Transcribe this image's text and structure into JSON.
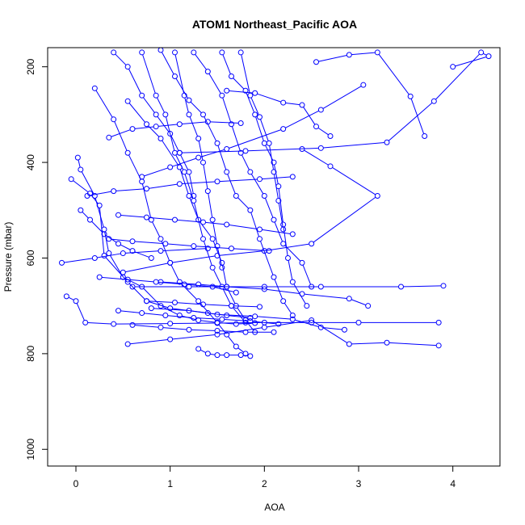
{
  "chart_data": {
    "type": "scatter",
    "title": "ATOM1 Northeast_Pacific AOA",
    "xlabel": "AOA",
    "ylabel": "Pressure (mbar)",
    "xlim": [
      -0.3,
      4.5
    ],
    "ylim": [
      1035,
      160
    ],
    "y_inverted": true,
    "xticks": [
      0,
      1,
      2,
      3,
      4
    ],
    "yticks": [
      200,
      400,
      600,
      800,
      1000
    ],
    "grid": false,
    "legend": "none",
    "colors": {
      "series": "#0000ff",
      "axes": "#000000"
    },
    "series": [
      {
        "points": [
          [
            0.02,
            390
          ],
          [
            0.05,
            415
          ],
          [
            0.2,
            470
          ],
          [
            0.3,
            540
          ],
          [
            0.35,
            590
          ],
          [
            0.5,
            640
          ],
          [
            0.7,
            660
          ],
          [
            0.9,
            700
          ],
          [
            1.1,
            720
          ],
          [
            1.3,
            730
          ],
          [
            1.5,
            735
          ],
          [
            1.7,
            738
          ],
          [
            1.9,
            736
          ]
        ]
      },
      {
        "points": [
          [
            -0.05,
            435
          ],
          [
            0.15,
            465
          ],
          [
            0.25,
            490
          ],
          [
            0.3,
            595
          ],
          [
            0.55,
            650
          ],
          [
            0.75,
            690
          ],
          [
            1.0,
            705
          ],
          [
            1.4,
            715
          ],
          [
            1.6,
            720
          ],
          [
            1.85,
            725
          ]
        ]
      },
      {
        "points": [
          [
            0.2,
            245
          ],
          [
            0.4,
            310
          ],
          [
            0.55,
            380
          ],
          [
            0.7,
            440
          ],
          [
            0.8,
            520
          ],
          [
            0.9,
            560
          ],
          [
            1.0,
            610
          ],
          [
            1.1,
            650
          ],
          [
            1.3,
            690
          ],
          [
            1.5,
            735
          ],
          [
            1.6,
            760
          ],
          [
            1.7,
            785
          ],
          [
            1.8,
            800
          ]
        ]
      },
      {
        "points": [
          [
            0.55,
            272
          ],
          [
            0.75,
            320
          ],
          [
            0.9,
            350
          ],
          [
            1.1,
            410
          ],
          [
            1.2,
            470
          ],
          [
            1.3,
            520
          ],
          [
            1.45,
            560
          ],
          [
            1.55,
            610
          ],
          [
            1.6,
            660
          ],
          [
            1.7,
            700
          ],
          [
            1.8,
            730
          ],
          [
            1.9,
            755
          ]
        ]
      },
      {
        "points": [
          [
            0.7,
            170
          ],
          [
            0.85,
            260
          ],
          [
            0.95,
            300
          ],
          [
            1.05,
            380
          ],
          [
            1.15,
            420
          ],
          [
            1.25,
            480
          ],
          [
            1.35,
            560
          ],
          [
            1.45,
            620
          ],
          [
            1.55,
            660
          ],
          [
            1.65,
            700
          ],
          [
            1.8,
            735
          ]
        ]
      },
      {
        "points": [
          [
            0.9,
            165
          ],
          [
            1.05,
            220
          ],
          [
            1.2,
            270
          ],
          [
            1.35,
            300
          ],
          [
            1.5,
            360
          ],
          [
            1.6,
            420
          ],
          [
            1.7,
            470
          ],
          [
            1.85,
            500
          ],
          [
            1.95,
            560
          ],
          [
            2.1,
            640
          ],
          [
            2.2,
            690
          ],
          [
            2.3,
            720
          ]
        ]
      },
      {
        "points": [
          [
            1.25,
            170
          ],
          [
            1.4,
            210
          ],
          [
            1.55,
            260
          ],
          [
            1.65,
            320
          ],
          [
            1.75,
            380
          ],
          [
            1.85,
            420
          ],
          [
            2.0,
            470
          ],
          [
            2.1,
            520
          ],
          [
            2.2,
            570
          ],
          [
            2.4,
            610
          ],
          [
            2.5,
            660
          ]
        ]
      },
      {
        "points": [
          [
            1.55,
            170
          ],
          [
            1.65,
            220
          ],
          [
            1.8,
            250
          ],
          [
            1.9,
            300
          ],
          [
            2.0,
            360
          ],
          [
            2.1,
            400
          ],
          [
            2.15,
            450
          ],
          [
            2.2,
            530
          ],
          [
            2.25,
            600
          ],
          [
            2.3,
            650
          ],
          [
            2.45,
            700
          ]
        ]
      },
      {
        "points": [
          [
            0.5,
            630
          ],
          [
            1.0,
            610
          ],
          [
            1.5,
            595
          ],
          [
            2.0,
            585
          ],
          [
            2.5,
            570
          ],
          [
            3.2,
            470
          ],
          [
            2.7,
            408
          ],
          [
            2.4,
            372
          ]
        ]
      },
      {
        "points": [
          [
            2.55,
            190
          ],
          [
            2.9,
            175
          ],
          [
            3.2,
            170
          ],
          [
            3.55,
            262
          ],
          [
            3.7,
            345
          ]
        ]
      },
      {
        "points": [
          [
            3.05,
            238
          ],
          [
            2.6,
            290
          ],
          [
            2.2,
            330
          ],
          [
            1.6,
            372
          ],
          [
            1.3,
            390
          ],
          [
            1.0,
            410
          ],
          [
            0.7,
            430
          ]
        ]
      },
      {
        "points": [
          [
            1.1,
            380
          ],
          [
            1.8,
            376
          ],
          [
            2.6,
            370
          ],
          [
            3.3,
            358
          ],
          [
            3.8,
            272
          ],
          [
            4.3,
            170
          ],
          [
            4.38,
            178
          ],
          [
            4.0,
            200
          ]
        ]
      },
      {
        "points": [
          [
            -0.15,
            610
          ],
          [
            0.2,
            600
          ],
          [
            0.5,
            590
          ],
          [
            0.9,
            585
          ],
          [
            1.4,
            580
          ]
        ]
      },
      {
        "points": [
          [
            -0.1,
            680
          ],
          [
            0.0,
            690
          ],
          [
            0.1,
            735
          ],
          [
            0.4,
            738
          ],
          [
            1.0,
            737
          ],
          [
            1.5,
            736
          ],
          [
            2.0,
            735
          ],
          [
            2.5,
            735
          ],
          [
            3.0,
            735
          ],
          [
            3.85,
            735
          ]
        ]
      },
      {
        "points": [
          [
            0.55,
            780
          ],
          [
            1.0,
            770
          ],
          [
            1.5,
            760
          ],
          [
            2.0,
            745
          ],
          [
            2.5,
            730
          ],
          [
            2.9,
            780
          ],
          [
            3.3,
            777
          ],
          [
            3.85,
            783
          ]
        ]
      },
      {
        "points": [
          [
            0.6,
            660
          ],
          [
            1.2,
            660
          ],
          [
            2.0,
            660
          ],
          [
            2.6,
            660
          ],
          [
            3.45,
            660
          ],
          [
            3.9,
            658
          ]
        ]
      },
      {
        "points": [
          [
            0.9,
            650
          ],
          [
            1.3,
            655
          ],
          [
            1.6,
            660
          ],
          [
            2.0,
            665
          ],
          [
            2.4,
            675
          ],
          [
            2.9,
            685
          ],
          [
            3.1,
            700
          ]
        ]
      },
      {
        "points": [
          [
            0.8,
            705
          ],
          [
            1.2,
            710
          ],
          [
            1.5,
            718
          ],
          [
            1.9,
            722
          ],
          [
            2.3,
            728
          ],
          [
            2.6,
            745
          ],
          [
            2.85,
            750
          ]
        ]
      },
      {
        "points": [
          [
            1.3,
            790
          ],
          [
            1.4,
            800
          ],
          [
            1.5,
            803
          ],
          [
            1.6,
            803
          ],
          [
            1.75,
            803
          ],
          [
            1.85,
            805
          ]
        ]
      },
      {
        "points": [
          [
            0.35,
            348
          ],
          [
            0.6,
            330
          ],
          [
            0.85,
            325
          ],
          [
            1.1,
            320
          ],
          [
            1.4,
            315
          ],
          [
            1.75,
            318
          ]
        ]
      },
      {
        "points": [
          [
            0.12,
            470
          ],
          [
            0.4,
            460
          ],
          [
            0.75,
            455
          ],
          [
            1.1,
            445
          ],
          [
            1.5,
            440
          ],
          [
            1.95,
            435
          ],
          [
            2.3,
            430
          ]
        ]
      },
      {
        "points": [
          [
            0.45,
            510
          ],
          [
            0.75,
            515
          ],
          [
            1.05,
            520
          ],
          [
            1.35,
            525
          ],
          [
            1.6,
            530
          ],
          [
            1.95,
            540
          ],
          [
            2.3,
            550
          ]
        ]
      },
      {
        "points": [
          [
            0.35,
            560
          ],
          [
            0.6,
            565
          ],
          [
            0.95,
            570
          ],
          [
            1.25,
            575
          ],
          [
            1.65,
            580
          ],
          [
            2.05,
            585
          ]
        ]
      },
      {
        "points": [
          [
            0.25,
            640
          ],
          [
            0.55,
            645
          ],
          [
            0.85,
            650
          ],
          [
            1.15,
            655
          ],
          [
            1.45,
            660
          ],
          [
            1.7,
            672
          ]
        ]
      },
      {
        "points": [
          [
            0.45,
            710
          ],
          [
            0.7,
            715
          ],
          [
            0.95,
            720
          ],
          [
            1.25,
            725
          ],
          [
            1.55,
            728
          ],
          [
            1.85,
            732
          ],
          [
            2.15,
            738
          ]
        ]
      },
      {
        "points": [
          [
            0.6,
            740
          ],
          [
            0.9,
            745
          ],
          [
            1.2,
            750
          ],
          [
            1.5,
            752
          ],
          [
            1.8,
            755
          ],
          [
            2.1,
            755
          ]
        ]
      },
      {
        "points": [
          [
            0.75,
            690
          ],
          [
            1.05,
            693
          ],
          [
            1.35,
            697
          ],
          [
            1.65,
            700
          ],
          [
            1.95,
            702
          ]
        ]
      },
      {
        "points": [
          [
            1.05,
            170
          ],
          [
            1.15,
            260
          ],
          [
            1.2,
            300
          ],
          [
            1.3,
            350
          ],
          [
            1.35,
            400
          ],
          [
            1.4,
            460
          ],
          [
            1.45,
            520
          ],
          [
            1.5,
            575
          ],
          [
            1.55,
            620
          ]
        ]
      },
      {
        "points": [
          [
            0.4,
            170
          ],
          [
            0.55,
            200
          ],
          [
            0.7,
            260
          ],
          [
            0.85,
            300
          ],
          [
            1.0,
            340
          ],
          [
            1.1,
            380
          ],
          [
            1.2,
            420
          ],
          [
            1.25,
            470
          ]
        ]
      },
      {
        "points": [
          [
            1.75,
            170
          ],
          [
            1.85,
            260
          ],
          [
            1.95,
            305
          ],
          [
            2.05,
            360
          ],
          [
            2.1,
            420
          ],
          [
            2.15,
            480
          ],
          [
            2.2,
            540
          ]
        ]
      },
      {
        "points": [
          [
            0.05,
            500
          ],
          [
            0.15,
            520
          ],
          [
            0.3,
            550
          ],
          [
            0.45,
            570
          ],
          [
            0.6,
            585
          ],
          [
            0.8,
            600
          ]
        ]
      },
      {
        "points": [
          [
            1.6,
            250
          ],
          [
            1.9,
            255
          ],
          [
            2.2,
            275
          ],
          [
            2.4,
            280
          ],
          [
            2.55,
            325
          ],
          [
            2.7,
            345
          ]
        ]
      }
    ]
  }
}
